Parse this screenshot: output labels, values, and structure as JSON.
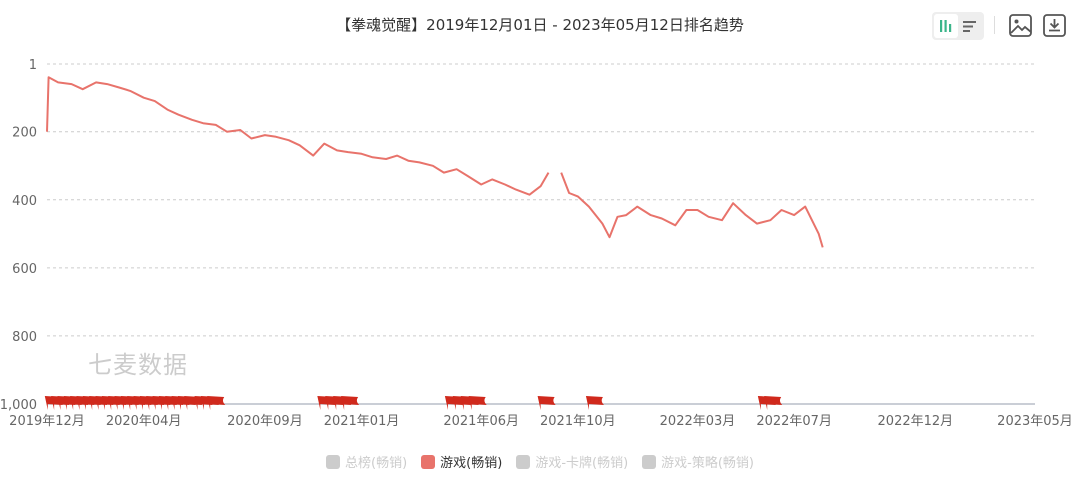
{
  "title": "【拳魂觉醒】2019年12月01日 - 2023年05月12日排名趋势",
  "toolbar": {
    "icons": [
      "bar-chart-icon",
      "list-icon",
      "save-image-icon",
      "download-icon"
    ]
  },
  "watermark": "七麦数据",
  "legend": [
    {
      "label": "总榜(畅销)",
      "active": false,
      "color": "#cccccc"
    },
    {
      "label": "游戏(畅销)",
      "active": true,
      "color": "#e8736b"
    },
    {
      "label": "游戏-卡牌(畅销)",
      "active": false,
      "color": "#cccccc"
    },
    {
      "label": "游戏-策略(畅销)",
      "active": false,
      "color": "#cccccc"
    }
  ],
  "chart_data": {
    "type": "line",
    "title": "【拳魂觉醒】2019年12月01日 - 2023年05月12日排名趋势",
    "y_inverted": true,
    "ylim": [
      1,
      1000
    ],
    "y_ticks": [
      "1",
      "200",
      "400",
      "600",
      "800",
      "1,000"
    ],
    "y_tick_values": [
      1,
      200,
      400,
      600,
      800,
      1000
    ],
    "xlim": [
      "2019-12-01",
      "2023-05-12"
    ],
    "x_ticks": [
      "2019年12月",
      "2020年04月",
      "2020年09月",
      "2021年01月",
      "2021年06月",
      "2021年10月",
      "2022年03月",
      "2022年07月",
      "2022年12月",
      "2023年05月"
    ],
    "x_tick_dates": [
      "2019-12-01",
      "2020-04-01",
      "2020-09-01",
      "2021-01-01",
      "2021-06-01",
      "2021-10-01",
      "2022-03-01",
      "2022-07-01",
      "2022-12-01",
      "2023-05-01"
    ],
    "grid": true,
    "line_color": "#e8736b",
    "marker_color": "#d0291c",
    "series": [
      {
        "name": "游戏(畅销)",
        "x": [
          "2019-12-01",
          "2019-12-03",
          "2019-12-15",
          "2020-01-01",
          "2020-01-15",
          "2020-02-01",
          "2020-02-15",
          "2020-03-01",
          "2020-03-15",
          "2020-04-01",
          "2020-04-15",
          "2020-05-01",
          "2020-05-15",
          "2020-06-01",
          "2020-06-15",
          "2020-07-01",
          "2020-07-15",
          "2020-08-01",
          "2020-08-15",
          "2020-09-01",
          "2020-09-15",
          "2020-10-01",
          "2020-10-15",
          "2020-11-01",
          "2020-11-15",
          "2020-12-01",
          "2020-12-15",
          "2021-01-01",
          "2021-01-15",
          "2021-02-01",
          "2021-02-15",
          "2021-03-01",
          "2021-03-15",
          "2021-04-01",
          "2021-04-15",
          "2021-05-01",
          "2021-05-15",
          "2021-06-01",
          "2021-06-15",
          "2021-07-01",
          "2021-07-15",
          "2021-08-01",
          "2021-08-15",
          "2021-08-25",
          "2021-09-01",
          "2021-09-10",
          "2021-09-20",
          "2021-10-01",
          "2021-10-15",
          "2021-11-01",
          "2021-11-10",
          "2021-11-20",
          "2021-12-01",
          "2021-12-15",
          "2022-01-01",
          "2022-01-15",
          "2022-02-01",
          "2022-02-15",
          "2022-03-01",
          "2022-03-15",
          "2022-04-01",
          "2022-04-15",
          "2022-05-01",
          "2022-05-15",
          "2022-06-01",
          "2022-06-15",
          "2022-07-01",
          "2022-07-15",
          "2022-08-01",
          "2022-08-06"
        ],
        "values": [
          200,
          40,
          55,
          60,
          75,
          55,
          60,
          70,
          80,
          100,
          110,
          135,
          150,
          165,
          175,
          180,
          200,
          195,
          220,
          210,
          215,
          225,
          240,
          270,
          235,
          255,
          260,
          265,
          275,
          280,
          270,
          285,
          290,
          300,
          320,
          310,
          330,
          355,
          340,
          355,
          370,
          385,
          360,
          320,
          null,
          320,
          380,
          390,
          420,
          470,
          510,
          450,
          445,
          420,
          445,
          455,
          475,
          430,
          430,
          450,
          460,
          410,
          445,
          470,
          460,
          430,
          445,
          420,
          500,
          540
        ]
      }
    ],
    "markers": [
      "2019-12-02",
      "2019-12-10",
      "2019-12-18",
      "2019-12-26",
      "2020-01-03",
      "2020-01-11",
      "2020-01-19",
      "2020-01-27",
      "2020-02-04",
      "2020-02-12",
      "2020-02-20",
      "2020-02-28",
      "2020-03-07",
      "2020-03-15",
      "2020-03-23",
      "2020-03-31",
      "2020-04-08",
      "2020-04-16",
      "2020-04-24",
      "2020-05-02",
      "2020-05-10",
      "2020-05-18",
      "2020-05-26",
      "2020-06-08",
      "2020-06-16",
      "2020-06-24",
      "2020-11-10",
      "2020-11-20",
      "2020-11-30",
      "2020-12-10",
      "2021-04-20",
      "2021-04-30",
      "2021-05-10",
      "2021-05-20",
      "2021-08-15",
      "2021-10-15",
      "2022-05-20",
      "2022-05-28"
    ]
  }
}
